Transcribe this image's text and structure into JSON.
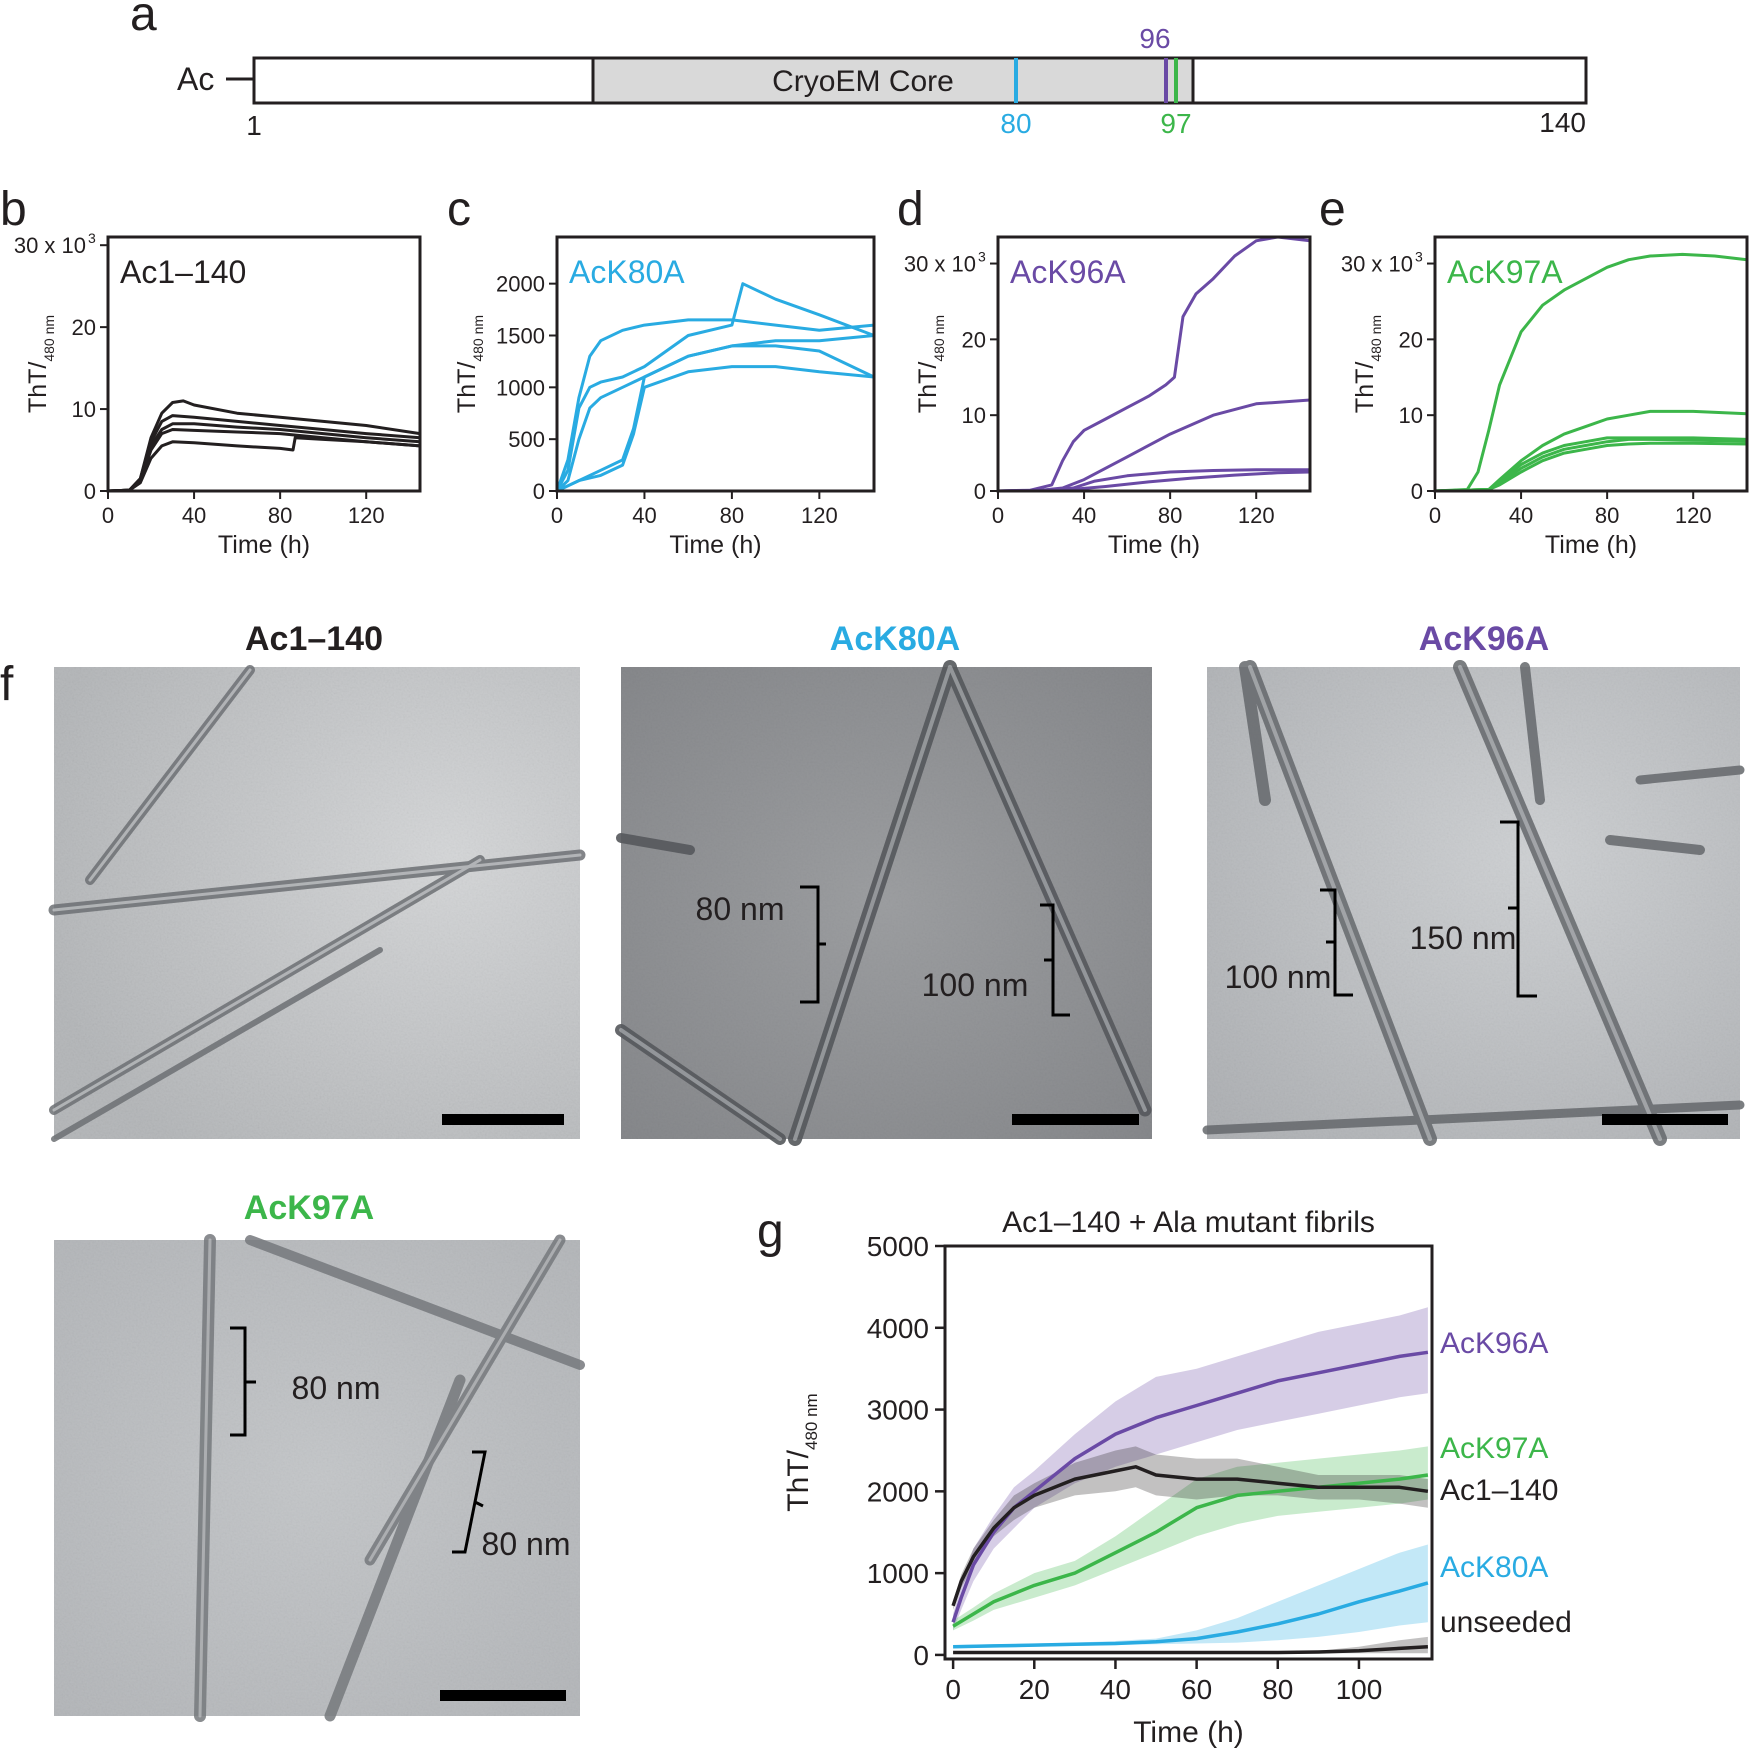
{
  "colors": {
    "ac": "#231f20",
    "k80": "#29abe2",
    "k96": "#6a4aa5",
    "k97": "#3cb64a",
    "gray_core": "#d9d9d9"
  },
  "panel_a": {
    "letter": "a",
    "n_label": "Ac",
    "core_label": "CryoEM Core",
    "start": "1",
    "end": "140",
    "mark80": "80",
    "mark96": "96",
    "mark97": "97"
  },
  "kinetics": [
    {
      "letter": "b",
      "name": "Ac1–140",
      "color": "#231f20",
      "ymax_label": "30 x 10",
      "sup": "3"
    },
    {
      "letter": "c",
      "name": "AcK80A",
      "color": "#29abe2",
      "ymax_label": "",
      "sup": ""
    },
    {
      "letter": "d",
      "name": "AcK96A",
      "color": "#6a4aa5",
      "ymax_label": "30 x 10",
      "sup": "3"
    },
    {
      "letter": "e",
      "name": "AcK97A",
      "color": "#3cb64a",
      "ymax_label": "30 x 10",
      "sup": "3"
    }
  ],
  "kinetic_axes": {
    "xlabel": "Time (h)",
    "ylabel_main": "ThT/",
    "ylabel_sub": "480 nm",
    "xticks": [
      "0",
      "40",
      "80",
      "120"
    ],
    "yticks_thousands": [
      "0",
      "10",
      "20"
    ],
    "yticks_k80": [
      "0",
      "500",
      "1000",
      "1500",
      "2000"
    ]
  },
  "panel_f": {
    "letter": "f",
    "images": [
      {
        "title": "Ac1–140",
        "color": "#231f20",
        "labels": []
      },
      {
        "title": "AcK80A",
        "color": "#29abe2",
        "labels": [
          "80 nm",
          "100 nm"
        ]
      },
      {
        "title": "AcK96A",
        "color": "#6a4aa5",
        "labels": [
          "100 nm",
          "150 nm"
        ]
      },
      {
        "title": "AcK97A",
        "color": "#3cb64a",
        "labels": [
          "80 nm",
          "80 nm"
        ]
      }
    ]
  },
  "chart_data": [
    {
      "type": "line",
      "panel": "b",
      "title": "Ac1–140",
      "xlabel": "Time (h)",
      "ylabel": "ThT/480 nm",
      "xlim": [
        0,
        145
      ],
      "ylim": [
        0,
        31000
      ],
      "series": [
        {
          "x": [
            0,
            10,
            15,
            20,
            25,
            30,
            35,
            40,
            60,
            80,
            100,
            120,
            145
          ],
          "y": [
            0,
            100,
            1500,
            6500,
            9500,
            10800,
            11000,
            10500,
            9500,
            9000,
            8500,
            8000,
            7000
          ]
        },
        {
          "x": [
            0,
            10,
            15,
            20,
            25,
            30,
            40,
            60,
            80,
            100,
            120,
            145
          ],
          "y": [
            0,
            100,
            1500,
            6000,
            8500,
            9200,
            9000,
            8500,
            8000,
            7500,
            7000,
            6500
          ]
        },
        {
          "x": [
            0,
            10,
            15,
            20,
            25,
            30,
            40,
            60,
            80,
            100,
            120,
            145
          ],
          "y": [
            0,
            100,
            1200,
            5500,
            7500,
            8200,
            8200,
            7800,
            7500,
            7000,
            6500,
            6000
          ]
        },
        {
          "x": [
            0,
            10,
            15,
            20,
            25,
            30,
            40,
            60,
            80,
            100,
            120,
            145
          ],
          "y": [
            0,
            100,
            1200,
            5000,
            7000,
            7500,
            7400,
            7200,
            7000,
            6500,
            6000,
            5500
          ]
        },
        {
          "x": [
            0,
            10,
            15,
            20,
            25,
            30,
            40,
            60,
            80,
            86,
            87,
            100,
            120,
            145
          ],
          "y": [
            0,
            100,
            1000,
            4000,
            5500,
            6000,
            5900,
            5500,
            5200,
            5000,
            6500,
            6300,
            6000,
            5500
          ]
        }
      ]
    },
    {
      "type": "line",
      "panel": "c",
      "title": "AcK80A",
      "xlabel": "Time (h)",
      "ylabel": "ThT/480 nm",
      "xlim": [
        0,
        145
      ],
      "ylim": [
        0,
        2450
      ],
      "series": [
        {
          "x": [
            0,
            5,
            10,
            15,
            20,
            30,
            40,
            60,
            80,
            85,
            100,
            120,
            145
          ],
          "y": [
            0,
            200,
            800,
            1000,
            1050,
            1100,
            1200,
            1500,
            1600,
            2000,
            1850,
            1700,
            1500
          ]
        },
        {
          "x": [
            0,
            5,
            10,
            15,
            20,
            30,
            40,
            60,
            80,
            100,
            120,
            145
          ],
          "y": [
            0,
            300,
            900,
            1300,
            1450,
            1550,
            1600,
            1650,
            1650,
            1600,
            1550,
            1600
          ]
        },
        {
          "x": [
            0,
            5,
            10,
            15,
            20,
            30,
            40,
            60,
            80,
            100,
            120,
            145
          ],
          "y": [
            0,
            100,
            500,
            800,
            900,
            1000,
            1100,
            1300,
            1400,
            1450,
            1450,
            1500
          ]
        },
        {
          "x": [
            0,
            5,
            10,
            20,
            30,
            35,
            40,
            60,
            80,
            100,
            120,
            145
          ],
          "y": [
            0,
            50,
            100,
            200,
            300,
            600,
            1100,
            1300,
            1400,
            1400,
            1350,
            1100
          ]
        },
        {
          "x": [
            0,
            5,
            10,
            20,
            30,
            35,
            40,
            60,
            80,
            100,
            120,
            145
          ],
          "y": [
            0,
            50,
            100,
            150,
            250,
            550,
            1000,
            1150,
            1200,
            1200,
            1150,
            1100
          ]
        }
      ]
    },
    {
      "type": "line",
      "panel": "d",
      "title": "AcK96A",
      "xlabel": "Time (h)",
      "ylabel": "ThT/480 nm",
      "xlim": [
        0,
        145
      ],
      "ylim": [
        0,
        33500
      ],
      "series": [
        {
          "x": [
            0,
            15,
            25,
            30,
            35,
            40,
            50,
            60,
            70,
            78,
            82,
            86,
            92,
            100,
            110,
            120,
            130,
            145
          ],
          "y": [
            0,
            100,
            800,
            4000,
            6500,
            8000,
            9500,
            11000,
            12500,
            14000,
            15000,
            23000,
            26000,
            28000,
            31000,
            33000,
            33500,
            33000
          ]
        },
        {
          "x": [
            0,
            20,
            30,
            40,
            60,
            80,
            100,
            120,
            145
          ],
          "y": [
            0,
            100,
            400,
            1500,
            4500,
            7500,
            10000,
            11500,
            12000
          ]
        },
        {
          "x": [
            0,
            25,
            35,
            45,
            60,
            80,
            100,
            120,
            145
          ],
          "y": [
            0,
            100,
            400,
            1300,
            2000,
            2500,
            2700,
            2800,
            2800
          ]
        },
        {
          "x": [
            0,
            30,
            50,
            70,
            90,
            110,
            130,
            145
          ],
          "y": [
            0,
            100,
            600,
            1200,
            1700,
            2100,
            2400,
            2500
          ]
        }
      ]
    },
    {
      "type": "line",
      "panel": "e",
      "title": "AcK97A",
      "xlabel": "Time (h)",
      "ylabel": "ThT/480 nm",
      "xlim": [
        0,
        145
      ],
      "ylim": [
        0,
        33500
      ],
      "series": [
        {
          "x": [
            0,
            15,
            20,
            25,
            30,
            40,
            50,
            60,
            70,
            80,
            90,
            100,
            115,
            130,
            145
          ],
          "y": [
            0,
            200,
            2500,
            8000,
            14000,
            21000,
            24500,
            26500,
            28000,
            29500,
            30500,
            31000,
            31200,
            31000,
            30500
          ]
        },
        {
          "x": [
            0,
            25,
            30,
            40,
            50,
            60,
            70,
            80,
            90,
            100,
            120,
            145
          ],
          "y": [
            0,
            200,
            1500,
            4000,
            6000,
            7500,
            8500,
            9500,
            10000,
            10500,
            10500,
            10200
          ]
        },
        {
          "x": [
            0,
            25,
            30,
            40,
            50,
            60,
            70,
            80,
            90,
            100,
            120,
            145
          ],
          "y": [
            0,
            200,
            1200,
            3500,
            5000,
            6000,
            6500,
            7000,
            7000,
            7000,
            7000,
            6800
          ]
        },
        {
          "x": [
            0,
            25,
            30,
            40,
            50,
            60,
            70,
            80,
            90,
            100,
            120,
            145
          ],
          "y": [
            0,
            200,
            1000,
            3000,
            4500,
            5500,
            6000,
            6500,
            6800,
            6800,
            6700,
            6600
          ]
        },
        {
          "x": [
            0,
            25,
            30,
            40,
            50,
            60,
            70,
            80,
            90,
            100,
            120,
            145
          ],
          "y": [
            0,
            200,
            800,
            2500,
            4000,
            5000,
            5500,
            6000,
            6200,
            6300,
            6300,
            6200
          ]
        }
      ]
    },
    {
      "type": "line",
      "panel": "g",
      "title": "Ac1–140 + Ala mutant fibrils",
      "xlabel": "Time (h)",
      "ylabel": "ThT/480 nm",
      "xlim": [
        -2,
        118
      ],
      "ylim": [
        -50,
        5000
      ],
      "xticks": [
        0,
        20,
        40,
        60,
        80,
        100
      ],
      "yticks": [
        0,
        1000,
        2000,
        3000,
        4000,
        5000
      ],
      "series": [
        {
          "name": "AcK96A",
          "color": "#6a4aa5",
          "x": [
            0,
            2,
            5,
            10,
            15,
            20,
            30,
            40,
            50,
            60,
            70,
            80,
            90,
            100,
            110,
            117
          ],
          "y": [
            400,
            700,
            1100,
            1500,
            1800,
            2000,
            2400,
            2700,
            2900,
            3050,
            3200,
            3350,
            3450,
            3550,
            3650,
            3700
          ],
          "lower": [
            300,
            550,
            900,
            1300,
            1550,
            1800,
            2100,
            2300,
            2450,
            2600,
            2750,
            2850,
            2950,
            3050,
            3150,
            3200
          ],
          "upper": [
            500,
            850,
            1300,
            1700,
            2050,
            2250,
            2700,
            3100,
            3400,
            3500,
            3650,
            3800,
            3950,
            4050,
            4150,
            4250
          ]
        },
        {
          "name": "AcK97A",
          "color": "#3cb64a",
          "x": [
            0,
            5,
            10,
            20,
            30,
            40,
            50,
            60,
            70,
            80,
            90,
            100,
            110,
            117
          ],
          "y": [
            350,
            500,
            650,
            850,
            1000,
            1250,
            1500,
            1800,
            1950,
            2000,
            2050,
            2100,
            2150,
            2200
          ],
          "lower": [
            300,
            420,
            550,
            700,
            850,
            1050,
            1250,
            1450,
            1600,
            1700,
            1750,
            1800,
            1850,
            1900
          ],
          "upper": [
            420,
            580,
            750,
            1000,
            1150,
            1450,
            1800,
            2150,
            2300,
            2350,
            2400,
            2450,
            2500,
            2550
          ]
        },
        {
          "name": "Ac1–140",
          "color": "#231f20",
          "x": [
            0,
            2,
            5,
            10,
            15,
            20,
            30,
            40,
            45,
            50,
            60,
            70,
            80,
            90,
            100,
            110,
            117
          ],
          "y": [
            600,
            900,
            1200,
            1550,
            1800,
            1950,
            2150,
            2250,
            2300,
            2200,
            2150,
            2150,
            2100,
            2050,
            2050,
            2050,
            2000
          ],
          "lower": [
            550,
            820,
            1100,
            1450,
            1650,
            1800,
            1950,
            2000,
            2050,
            1950,
            1900,
            1950,
            1950,
            1900,
            1900,
            1850,
            1800
          ],
          "upper": [
            650,
            980,
            1300,
            1650,
            1950,
            2100,
            2350,
            2500,
            2550,
            2450,
            2400,
            2400,
            2300,
            2200,
            2200,
            2200,
            2150
          ]
        },
        {
          "name": "AcK80A",
          "color": "#29abe2",
          "x": [
            0,
            10,
            20,
            30,
            40,
            50,
            60,
            70,
            80,
            90,
            100,
            110,
            117
          ],
          "y": [
            100,
            110,
            120,
            130,
            140,
            160,
            200,
            280,
            380,
            500,
            650,
            780,
            880
          ],
          "lower": [
            80,
            90,
            100,
            110,
            120,
            130,
            140,
            150,
            180,
            220,
            280,
            360,
            400
          ],
          "upper": [
            120,
            130,
            140,
            150,
            170,
            200,
            300,
            450,
            650,
            850,
            1050,
            1250,
            1350
          ]
        },
        {
          "name": "unseeded",
          "color": "#231f20",
          "x": [
            0,
            20,
            40,
            60,
            80,
            90,
            100,
            110,
            117
          ],
          "y": [
            30,
            30,
            30,
            30,
            30,
            35,
            50,
            80,
            100
          ],
          "lower": [
            20,
            20,
            20,
            20,
            20,
            20,
            20,
            20,
            20
          ],
          "upper": [
            40,
            40,
            40,
            40,
            40,
            50,
            100,
            180,
            220
          ]
        }
      ]
    }
  ],
  "panel_g": {
    "letter": "g"
  }
}
